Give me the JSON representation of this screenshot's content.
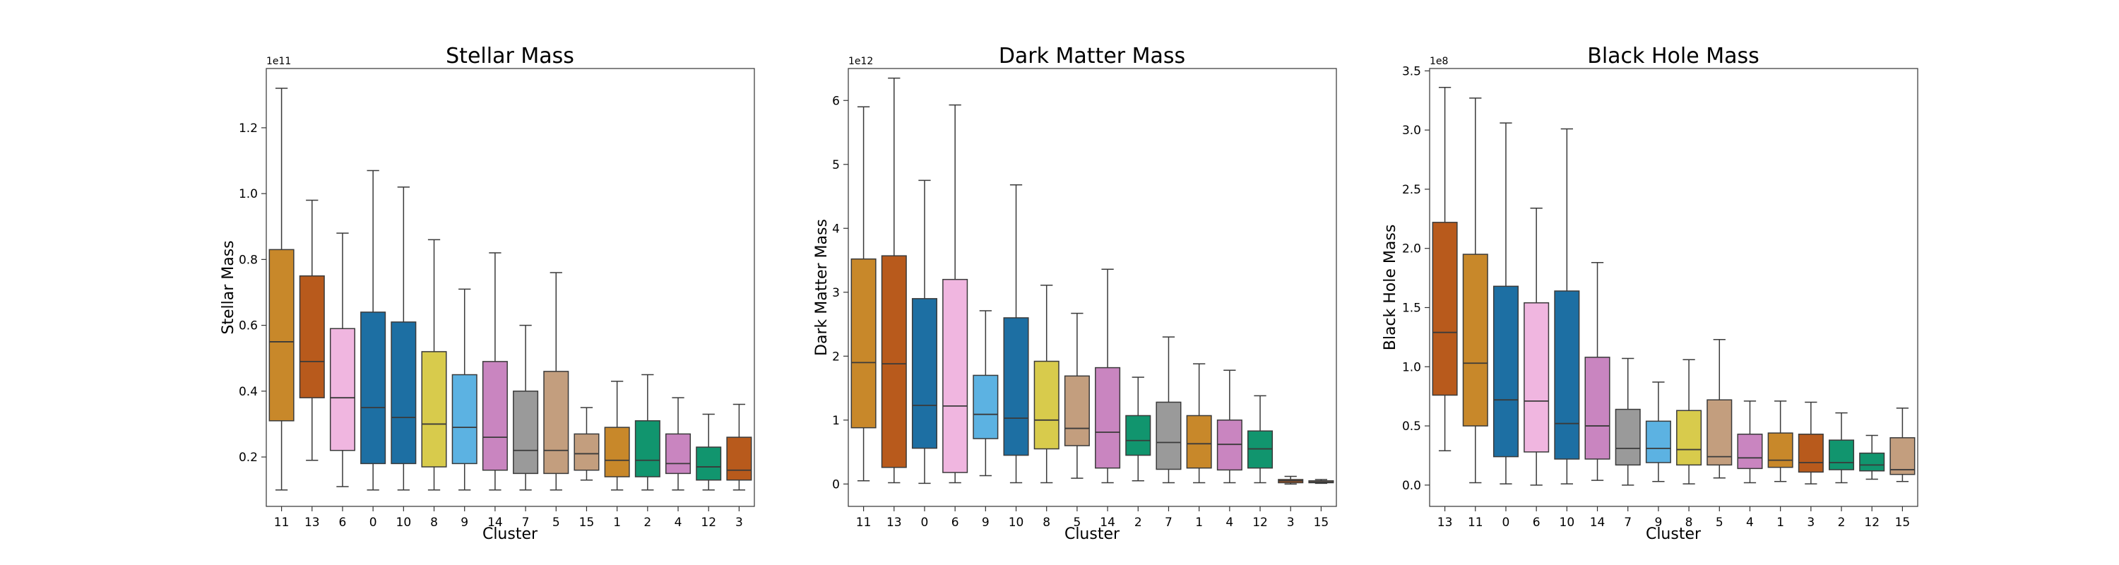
{
  "chart_data": [
    {
      "type": "box",
      "title": "Stellar Mass",
      "xlabel": "Cluster",
      "ylabel": "Stellar Mass",
      "y_exponent_label": "1e11",
      "ylim": [
        0.05,
        1.38
      ],
      "yticks": [
        0.2,
        0.4,
        0.6,
        0.8,
        1.0,
        1.2
      ],
      "ytick_labels": [
        "0.2",
        "0.4",
        "0.6",
        "0.8",
        "1.0",
        "1.2"
      ],
      "categories": [
        "11",
        "13",
        "6",
        "0",
        "10",
        "8",
        "9",
        "14",
        "7",
        "5",
        "15",
        "1",
        "2",
        "4",
        "12",
        "3"
      ],
      "boxes": [
        {
          "whislo": 0.1,
          "q1": 0.31,
          "med": 0.55,
          "q3": 0.83,
          "whishi": 1.32
        },
        {
          "whislo": 0.19,
          "q1": 0.38,
          "med": 0.49,
          "q3": 0.75,
          "whishi": 0.98
        },
        {
          "whislo": 0.11,
          "q1": 0.22,
          "med": 0.38,
          "q3": 0.59,
          "whishi": 0.88
        },
        {
          "whislo": 0.1,
          "q1": 0.18,
          "med": 0.35,
          "q3": 0.64,
          "whishi": 1.07
        },
        {
          "whislo": 0.1,
          "q1": 0.18,
          "med": 0.32,
          "q3": 0.61,
          "whishi": 1.02
        },
        {
          "whislo": 0.1,
          "q1": 0.17,
          "med": 0.3,
          "q3": 0.52,
          "whishi": 0.86
        },
        {
          "whislo": 0.1,
          "q1": 0.18,
          "med": 0.29,
          "q3": 0.45,
          "whishi": 0.71
        },
        {
          "whislo": 0.1,
          "q1": 0.16,
          "med": 0.26,
          "q3": 0.49,
          "whishi": 0.82
        },
        {
          "whislo": 0.1,
          "q1": 0.15,
          "med": 0.22,
          "q3": 0.4,
          "whishi": 0.6
        },
        {
          "whislo": 0.1,
          "q1": 0.15,
          "med": 0.22,
          "q3": 0.46,
          "whishi": 0.76
        },
        {
          "whislo": 0.13,
          "q1": 0.16,
          "med": 0.21,
          "q3": 0.27,
          "whishi": 0.35
        },
        {
          "whislo": 0.1,
          "q1": 0.14,
          "med": 0.19,
          "q3": 0.29,
          "whishi": 0.43
        },
        {
          "whislo": 0.1,
          "q1": 0.14,
          "med": 0.19,
          "q3": 0.31,
          "whishi": 0.45
        },
        {
          "whislo": 0.1,
          "q1": 0.15,
          "med": 0.18,
          "q3": 0.27,
          "whishi": 0.38
        },
        {
          "whislo": 0.1,
          "q1": 0.13,
          "med": 0.17,
          "q3": 0.23,
          "whishi": 0.33
        },
        {
          "whislo": 0.1,
          "q1": 0.13,
          "med": 0.16,
          "q3": 0.26,
          "whishi": 0.36
        }
      ],
      "colors": [
        "#c8882a",
        "#b85a1c",
        "#f0b6e0",
        "#1d6fa3",
        "#1d6fa3",
        "#d8cb4c",
        "#5cb2e2",
        "#c985c0",
        "#9a9a9a",
        "#c39e7e",
        "#c39e7e",
        "#c8882a",
        "#11956e",
        "#c985c0",
        "#11956e",
        "#b85a1c"
      ]
    },
    {
      "type": "box",
      "title": "Dark Matter Mass",
      "xlabel": "Cluster",
      "ylabel": "Dark Matter Mass",
      "y_exponent_label": "1e12",
      "ylim": [
        -0.35,
        6.5
      ],
      "yticks": [
        0,
        1,
        2,
        3,
        4,
        5,
        6
      ],
      "ytick_labels": [
        "0",
        "1",
        "2",
        "3",
        "4",
        "5",
        "6"
      ],
      "categories": [
        "11",
        "13",
        "0",
        "6",
        "9",
        "10",
        "8",
        "5",
        "14",
        "2",
        "7",
        "1",
        "4",
        "12",
        "3",
        "15"
      ],
      "boxes": [
        {
          "whislo": 0.05,
          "q1": 0.88,
          "med": 1.9,
          "q3": 3.52,
          "whishi": 5.9
        },
        {
          "whislo": 0.02,
          "q1": 0.26,
          "med": 1.88,
          "q3": 3.57,
          "whishi": 6.35
        },
        {
          "whislo": 0.01,
          "q1": 0.56,
          "med": 1.23,
          "q3": 2.9,
          "whishi": 4.75
        },
        {
          "whislo": 0.02,
          "q1": 0.18,
          "med": 1.22,
          "q3": 3.2,
          "whishi": 5.93
        },
        {
          "whislo": 0.13,
          "q1": 0.71,
          "med": 1.09,
          "q3": 1.7,
          "whishi": 2.71
        },
        {
          "whislo": 0.02,
          "q1": 0.45,
          "med": 1.03,
          "q3": 2.6,
          "whishi": 4.68
        },
        {
          "whislo": 0.02,
          "q1": 0.55,
          "med": 1.0,
          "q3": 1.92,
          "whishi": 3.11
        },
        {
          "whislo": 0.09,
          "q1": 0.6,
          "med": 0.87,
          "q3": 1.69,
          "whishi": 2.67
        },
        {
          "whislo": 0.02,
          "q1": 0.25,
          "med": 0.81,
          "q3": 1.82,
          "whishi": 3.36
        },
        {
          "whislo": 0.05,
          "q1": 0.45,
          "med": 0.68,
          "q3": 1.07,
          "whishi": 1.67
        },
        {
          "whislo": 0.02,
          "q1": 0.23,
          "med": 0.65,
          "q3": 1.28,
          "whishi": 2.3
        },
        {
          "whislo": 0.02,
          "q1": 0.25,
          "med": 0.63,
          "q3": 1.07,
          "whishi": 1.88
        },
        {
          "whislo": 0.02,
          "q1": 0.22,
          "med": 0.62,
          "q3": 1.0,
          "whishi": 1.78
        },
        {
          "whislo": 0.02,
          "q1": 0.25,
          "med": 0.55,
          "q3": 0.83,
          "whishi": 1.38
        },
        {
          "whislo": 0.0,
          "q1": 0.02,
          "med": 0.05,
          "q3": 0.07,
          "whishi": 0.12
        },
        {
          "whislo": 0.01,
          "q1": 0.02,
          "med": 0.03,
          "q3": 0.05,
          "whishi": 0.07
        }
      ],
      "colors": [
        "#c8882a",
        "#b85a1c",
        "#1d6fa3",
        "#f0b6e0",
        "#5cb2e2",
        "#1d6fa3",
        "#d8cb4c",
        "#c39e7e",
        "#c985c0",
        "#11956e",
        "#9a9a9a",
        "#c8882a",
        "#c985c0",
        "#11956e",
        "#b85a1c",
        "#c39e7e"
      ]
    },
    {
      "type": "box",
      "title": "Black Hole Mass",
      "xlabel": "Cluster",
      "ylabel": "Black Hole Mass",
      "y_exponent_label": "1e8",
      "ylim": [
        -0.18,
        3.52
      ],
      "yticks": [
        0.0,
        0.5,
        1.0,
        1.5,
        2.0,
        2.5,
        3.0,
        3.5
      ],
      "ytick_labels": [
        "0.0",
        "0.5",
        "1.0",
        "1.5",
        "2.0",
        "2.5",
        "3.0",
        "3.5"
      ],
      "categories": [
        "13",
        "11",
        "0",
        "6",
        "10",
        "14",
        "7",
        "9",
        "8",
        "5",
        "4",
        "1",
        "3",
        "2",
        "12",
        "15"
      ],
      "boxes": [
        {
          "whislo": 0.29,
          "q1": 0.76,
          "med": 1.29,
          "q3": 2.22,
          "whishi": 3.36
        },
        {
          "whislo": 0.02,
          "q1": 0.5,
          "med": 1.03,
          "q3": 1.95,
          "whishi": 3.27
        },
        {
          "whislo": 0.01,
          "q1": 0.24,
          "med": 0.72,
          "q3": 1.68,
          "whishi": 3.06
        },
        {
          "whislo": 0.0,
          "q1": 0.28,
          "med": 0.71,
          "q3": 1.54,
          "whishi": 2.34
        },
        {
          "whislo": 0.01,
          "q1": 0.22,
          "med": 0.52,
          "q3": 1.64,
          "whishi": 3.01
        },
        {
          "whislo": 0.04,
          "q1": 0.22,
          "med": 0.5,
          "q3": 1.08,
          "whishi": 1.88
        },
        {
          "whislo": 0.0,
          "q1": 0.17,
          "med": 0.31,
          "q3": 0.64,
          "whishi": 1.07
        },
        {
          "whislo": 0.03,
          "q1": 0.19,
          "med": 0.31,
          "q3": 0.54,
          "whishi": 0.87
        },
        {
          "whislo": 0.01,
          "q1": 0.17,
          "med": 0.3,
          "q3": 0.63,
          "whishi": 1.06
        },
        {
          "whislo": 0.06,
          "q1": 0.17,
          "med": 0.24,
          "q3": 0.72,
          "whishi": 1.23
        },
        {
          "whislo": 0.02,
          "q1": 0.14,
          "med": 0.23,
          "q3": 0.43,
          "whishi": 0.71
        },
        {
          "whislo": 0.03,
          "q1": 0.15,
          "med": 0.21,
          "q3": 0.44,
          "whishi": 0.71
        },
        {
          "whislo": 0.01,
          "q1": 0.11,
          "med": 0.19,
          "q3": 0.43,
          "whishi": 0.7
        },
        {
          "whislo": 0.02,
          "q1": 0.13,
          "med": 0.19,
          "q3": 0.38,
          "whishi": 0.61
        },
        {
          "whislo": 0.05,
          "q1": 0.12,
          "med": 0.17,
          "q3": 0.27,
          "whishi": 0.42
        },
        {
          "whislo": 0.03,
          "q1": 0.09,
          "med": 0.13,
          "q3": 0.4,
          "whishi": 0.65
        }
      ],
      "colors": [
        "#b85a1c",
        "#c8882a",
        "#1d6fa3",
        "#f0b6e0",
        "#1d6fa3",
        "#c985c0",
        "#9a9a9a",
        "#5cb2e2",
        "#d8cb4c",
        "#c39e7e",
        "#c985c0",
        "#c8882a",
        "#b85a1c",
        "#11956e",
        "#11956e",
        "#c39e7e"
      ]
    }
  ]
}
